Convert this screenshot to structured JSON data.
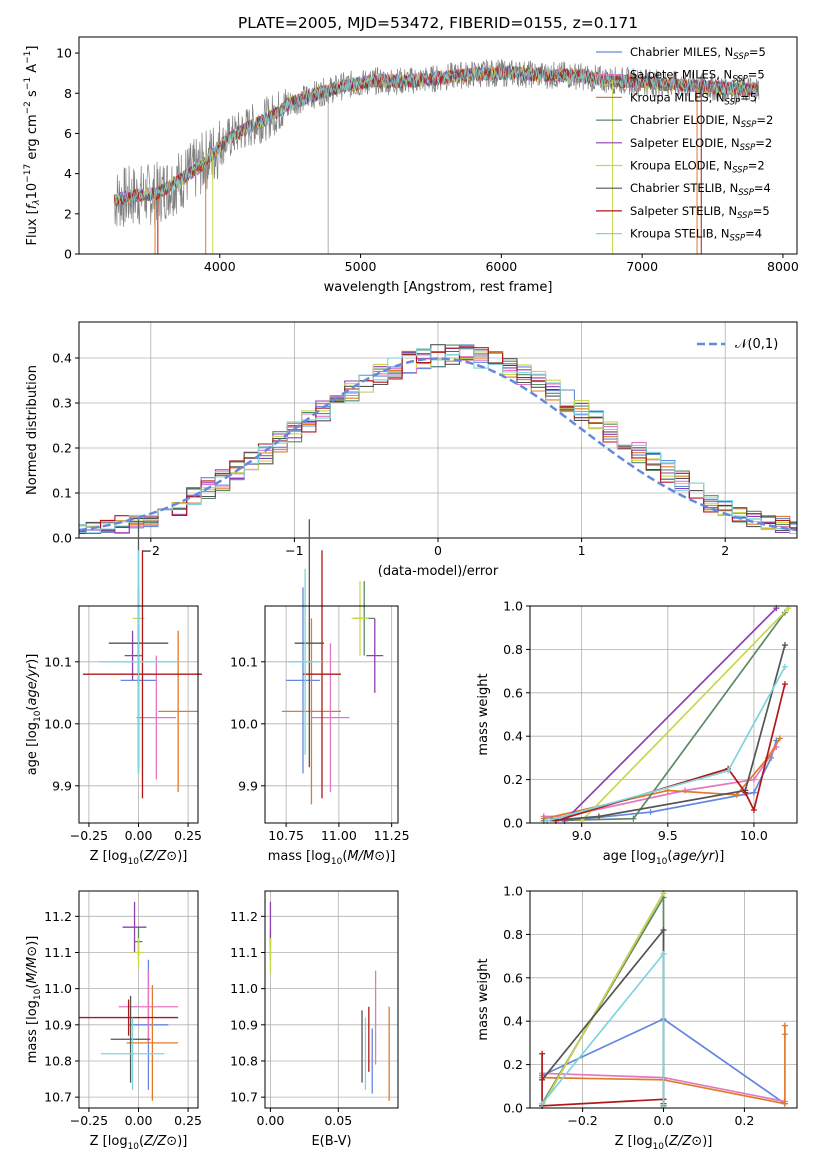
{
  "page_title": "PLATE=2005, MJD=53472, FIBERID=0155, z=0.171",
  "models": [
    {
      "name": "Chabrier MILES, N_SSP=5",
      "pre": "Chabrier MILES, N",
      "post": "=5",
      "color": "#6688dd"
    },
    {
      "name": "Salpeter MILES, N_SSP=5",
      "pre": "Salpeter MILES, N",
      "post": "=5",
      "color": "#e377c2"
    },
    {
      "name": "Kroupa MILES, N_SSP=5",
      "pre": "Kroupa MILES, N",
      "post": "=5",
      "color": "#e07b2a"
    },
    {
      "name": "Chabrier ELODIE, N_SSP=2",
      "pre": "Chabrier ELODIE, N",
      "post": "=2",
      "color": "#5a8a66"
    },
    {
      "name": "Salpeter ELODIE, N_SSP=2",
      "pre": "Salpeter ELODIE, N",
      "post": "=2",
      "color": "#8e3fb0"
    },
    {
      "name": "Kroupa ELODIE, N_SSP=2",
      "pre": "Kroupa ELODIE, N",
      "post": "=2",
      "color": "#c8d84a"
    },
    {
      "name": "Chabrier STELIB, N_SSP=4",
      "pre": "Chabrier STELIB, N",
      "post": "=4",
      "color": "#555555"
    },
    {
      "name": "Salpeter STELIB, N_SSP=5",
      "pre": "Salpeter STELIB, N",
      "post": "=5",
      "color": "#b01818"
    },
    {
      "name": "Kroupa STELIB, N_SSP=4",
      "pre": "Kroupa STELIB, N",
      "post": "=4",
      "color": "#80d4dc"
    }
  ],
  "legend_sub": "SSP",
  "chart_data": [
    {
      "id": "spectrum",
      "type": "line",
      "title": "PLATE=2005, MJD=53472, FIBERID=0155, z=0.171",
      "xlabel": "wavelength [Angstrom, rest frame]",
      "ylabel": "Flux [f_λ 10^-17 erg cm^-2 s^-1 A^-1]",
      "xlim": [
        3000,
        8100
      ],
      "ylim": [
        0,
        10.8
      ],
      "xticks": [
        4000,
        5000,
        6000,
        7000,
        8000
      ],
      "yticks": [
        0,
        2,
        4,
        6,
        8,
        10
      ],
      "grid": false,
      "legend": "top-right",
      "data_color": "#808080",
      "continuum": {
        "wavelength": [
          3250,
          3400,
          3550,
          3700,
          3850,
          3950,
          4050,
          4200,
          4350,
          4500,
          4700,
          4900,
          5100,
          5300,
          5500,
          5700,
          5900,
          6100,
          6300,
          6500,
          6700,
          6900,
          7100,
          7300,
          7500,
          7700,
          7830
        ],
        "flux": [
          2.7,
          2.9,
          3.0,
          3.6,
          4.3,
          5.0,
          5.7,
          6.3,
          6.8,
          7.5,
          8.0,
          8.4,
          8.6,
          8.6,
          8.7,
          8.9,
          9.0,
          9.0,
          8.9,
          8.9,
          8.7,
          8.6,
          8.5,
          8.4,
          8.3,
          8.2,
          8.2
        ]
      }
    },
    {
      "id": "residual-histogram",
      "type": "bar",
      "xlabel": "(data-model)/error",
      "ylabel": "Normed distribution",
      "xlim": [
        -2.5,
        2.5
      ],
      "ylim": [
        0,
        0.48
      ],
      "xticks": [
        -2,
        -1,
        0,
        1,
        2
      ],
      "yticks": [
        0.0,
        0.1,
        0.2,
        0.3,
        0.4
      ],
      "grid": true,
      "legend": "top-right",
      "reference_curve": {
        "label": "𝒩(0,1)",
        "color": "#6688dd",
        "style": "dashed"
      },
      "bin_width": 0.1
    },
    {
      "id": "age-vs-Z",
      "type": "scatter",
      "xlabel": "Z [log10(Z/Z⊙)]",
      "ylabel": "age [log10(age/yr)]",
      "xlim": [
        -0.3,
        0.3
      ],
      "ylim": [
        9.84,
        10.19
      ],
      "xticks": [
        -0.25,
        0.0,
        0.25
      ],
      "yticks": [
        9.9,
        10.0,
        10.1
      ],
      "grid": true,
      "points": [
        {
          "model": 0,
          "x": 0.0,
          "y": 10.07,
          "xerr": 0.09,
          "yerr": 0.15
        },
        {
          "model": 1,
          "x": 0.09,
          "y": 10.01,
          "xerr": 0.1,
          "yerr": 0.1
        },
        {
          "model": 2,
          "x": 0.2,
          "y": 10.02,
          "xerr": 0.1,
          "yerr": 0.13
        },
        {
          "model": 3,
          "x": 0.0,
          "y": 10.11,
          "xerr": 0.02,
          "yerr": 0.05
        },
        {
          "model": 4,
          "x": -0.03,
          "y": 10.11,
          "xerr": 0.04,
          "yerr": 0.04
        },
        {
          "model": 5,
          "x": 0.0,
          "y": 10.17,
          "xerr": 0.03,
          "yerr": 0.01
        },
        {
          "model": 6,
          "x": 0.0,
          "y": 10.13,
          "xerr": 0.15,
          "yerr": 0.2
        },
        {
          "model": 7,
          "x": 0.02,
          "y": 10.08,
          "xerr": 0.3,
          "yerr": 0.2
        },
        {
          "model": 8,
          "x": 0.0,
          "y": 10.1,
          "xerr": 0.2,
          "yerr": 0.18
        }
      ]
    },
    {
      "id": "age-vs-mass",
      "type": "scatter",
      "xlabel": "mass [log10(M/M⊙)]",
      "ylabel": "",
      "xlim": [
        10.65,
        11.28
      ],
      "ylim": [
        9.84,
        10.19
      ],
      "xticks": [
        10.75,
        11.0,
        11.25
      ],
      "yticks": [
        9.9,
        10.0,
        10.1
      ],
      "grid": true,
      "points": [
        {
          "model": 0,
          "x": 10.83,
          "y": 10.07,
          "xerr": 0.08,
          "yerr": 0.15
        },
        {
          "model": 1,
          "x": 10.96,
          "y": 10.01,
          "xerr": 0.09,
          "yerr": 0.12
        },
        {
          "model": 2,
          "x": 10.87,
          "y": 10.02,
          "xerr": 0.14,
          "yerr": 0.15
        },
        {
          "model": 3,
          "x": 11.12,
          "y": 10.17,
          "xerr": 0.05,
          "yerr": 0.06
        },
        {
          "model": 4,
          "x": 11.17,
          "y": 10.11,
          "xerr": 0.04,
          "yerr": 0.06
        },
        {
          "model": 5,
          "x": 11.1,
          "y": 10.17,
          "xerr": 0.04,
          "yerr": 0.06
        },
        {
          "model": 6,
          "x": 10.86,
          "y": 10.13,
          "xerr": 0.07,
          "yerr": 0.2
        },
        {
          "model": 7,
          "x": 10.92,
          "y": 10.08,
          "xerr": 0.09,
          "yerr": 0.2
        },
        {
          "model": 8,
          "x": 10.84,
          "y": 10.1,
          "xerr": 0.08,
          "yerr": 0.15
        }
      ]
    },
    {
      "id": "massweight-vs-age",
      "type": "line",
      "xlabel": "age  [log10(age/yr)]",
      "ylabel": "mass weight",
      "xlim": [
        8.7,
        10.25
      ],
      "ylim": [
        0,
        1.0
      ],
      "xticks": [
        9.0,
        9.5,
        10.0
      ],
      "yticks": [
        0.0,
        0.2,
        0.4,
        0.6,
        0.8,
        1.0
      ],
      "grid": true,
      "series": [
        {
          "model": 0,
          "x": [
            8.78,
            8.9,
            9.4,
            10.0,
            10.1,
            10.13
          ],
          "y": [
            0.03,
            0.01,
            0.05,
            0.14,
            0.3,
            0.38
          ]
        },
        {
          "model": 1,
          "x": [
            8.78,
            8.9,
            9.6,
            10.0,
            10.13
          ],
          "y": [
            0.03,
            0.03,
            0.15,
            0.2,
            0.35
          ]
        },
        {
          "model": 2,
          "x": [
            8.78,
            9.5,
            9.9,
            10.08,
            10.15
          ],
          "y": [
            0.02,
            0.15,
            0.13,
            0.3,
            0.39
          ]
        },
        {
          "model": 3,
          "x": [
            8.78,
            9.3,
            10.18
          ],
          "y": [
            0.01,
            0.02,
            0.97
          ]
        },
        {
          "model": 4,
          "x": [
            8.9,
            10.13
          ],
          "y": [
            0.01,
            0.99
          ]
        },
        {
          "model": 5,
          "x": [
            9.0,
            10.2
          ],
          "y": [
            0.01,
            0.99
          ]
        },
        {
          "model": 6,
          "x": [
            8.8,
            9.1,
            9.95,
            10.18
          ],
          "y": [
            0.01,
            0.03,
            0.15,
            0.82
          ]
        },
        {
          "model": 7,
          "x": [
            8.85,
            9.85,
            9.95,
            10.0,
            10.18
          ],
          "y": [
            0.01,
            0.25,
            0.14,
            0.06,
            0.64
          ]
        },
        {
          "model": 8,
          "x": [
            8.8,
            9.85,
            10.18
          ],
          "y": [
            0.01,
            0.24,
            0.72
          ]
        }
      ]
    },
    {
      "id": "mass-vs-Z",
      "type": "scatter",
      "xlabel": "Z [log10(Z/Z⊙)]",
      "ylabel": "mass [log10(M/M⊙)]",
      "xlim": [
        -0.3,
        0.3
      ],
      "ylim": [
        10.67,
        11.27
      ],
      "xticks": [
        -0.25,
        0.0,
        0.25
      ],
      "yticks": [
        10.7,
        10.8,
        10.9,
        11.0,
        11.1,
        11.2
      ],
      "grid": true,
      "points": [
        {
          "model": 0,
          "x": 0.05,
          "y": 10.9,
          "xerr": 0.1,
          "yerr": 0.18
        },
        {
          "model": 1,
          "x": 0.05,
          "y": 10.95,
          "xerr": 0.15,
          "yerr": 0.1
        },
        {
          "model": 2,
          "x": 0.07,
          "y": 10.85,
          "xerr": 0.13,
          "yerr": 0.16
        },
        {
          "model": 3,
          "x": 0.0,
          "y": 11.13,
          "xerr": 0.02,
          "yerr": 0.04
        },
        {
          "model": 4,
          "x": -0.02,
          "y": 11.17,
          "xerr": 0.06,
          "yerr": 0.07
        },
        {
          "model": 5,
          "x": 0.0,
          "y": 11.1,
          "xerr": 0.03,
          "yerr": 0.04
        },
        {
          "model": 6,
          "x": -0.04,
          "y": 10.86,
          "xerr": 0.1,
          "yerr": 0.12
        },
        {
          "model": 7,
          "x": -0.05,
          "y": 10.92,
          "xerr": 0.25,
          "yerr": 0.05
        },
        {
          "model": 8,
          "x": -0.03,
          "y": 10.82,
          "xerr": 0.16,
          "yerr": 0.1
        }
      ]
    },
    {
      "id": "mass-vs-EBV",
      "type": "scatter",
      "xlabel": "E(B-V)",
      "ylabel": "",
      "xlim": [
        -0.004,
        0.094
      ],
      "ylim": [
        10.67,
        11.27
      ],
      "xticks": [
        0.0,
        0.05
      ],
      "yticks": [
        10.7,
        10.8,
        10.9,
        11.0,
        11.1,
        11.2
      ],
      "grid": true,
      "points": [
        {
          "model": 0,
          "x": 0.075,
          "y": 10.8,
          "yerr": 0.09
        },
        {
          "model": 1,
          "x": 0.0775,
          "y": 10.92,
          "yerr": 0.13
        },
        {
          "model": 2,
          "x": 0.0875,
          "y": 10.82,
          "yerr": 0.13
        },
        {
          "model": 3,
          "x": 0.0,
          "y": 11.12,
          "yerr": 0.04
        },
        {
          "model": 4,
          "x": 0.0,
          "y": 11.18,
          "yerr": 0.06
        },
        {
          "model": 5,
          "x": 0.0,
          "y": 11.09,
          "yerr": 0.05
        },
        {
          "model": 6,
          "x": 0.0675,
          "y": 10.84,
          "yerr": 0.1
        },
        {
          "model": 7,
          "x": 0.0725,
          "y": 10.86,
          "yerr": 0.09
        },
        {
          "model": 8,
          "x": 0.07,
          "y": 10.82,
          "yerr": 0.1
        }
      ]
    },
    {
      "id": "massweight-vs-Z",
      "type": "line",
      "xlabel": "Z [log10(Z/Z⊙)]",
      "ylabel": "mass weight",
      "xlim": [
        -0.33,
        0.33
      ],
      "ylim": [
        0,
        1.0
      ],
      "xticks": [
        -0.2,
        0.0,
        0.2
      ],
      "yticks": [
        0.0,
        0.2,
        0.4,
        0.6,
        0.8,
        1.0
      ],
      "grid": true,
      "series": [
        {
          "model": 0,
          "x": [
            -0.3,
            0.0,
            0.3
          ],
          "y": [
            0.15,
            0.41,
            0.02
          ]
        },
        {
          "model": 1,
          "x": [
            -0.3,
            0.0,
            0.3
          ],
          "y": [
            0.16,
            0.14,
            0.03
          ]
        },
        {
          "model": 2,
          "x": [
            -0.3,
            0.0,
            0.3,
            0.3,
            0.3
          ],
          "y": [
            0.14,
            0.13,
            0.02,
            0.38,
            0.34
          ]
        },
        {
          "model": 3,
          "x": [
            -0.3,
            0.0,
            0.0
          ],
          "y": [
            0.02,
            0.97,
            0.01
          ]
        },
        {
          "model": 4,
          "x": [
            -0.3,
            0.0
          ],
          "y": [
            0.01,
            0.99
          ]
        },
        {
          "model": 5,
          "x": [
            -0.3,
            0.0
          ],
          "y": [
            0.01,
            0.99
          ]
        },
        {
          "model": 6,
          "x": [
            -0.3,
            0.0,
            0.0
          ],
          "y": [
            0.13,
            0.82,
            0.02
          ]
        },
        {
          "model": 7,
          "x": [
            -0.3,
            -0.3,
            0.0
          ],
          "y": [
            0.25,
            0.01,
            0.04
          ]
        },
        {
          "model": 8,
          "x": [
            -0.3,
            0.0,
            0.0
          ],
          "y": [
            0.02,
            0.71,
            0.0
          ]
        }
      ]
    }
  ]
}
